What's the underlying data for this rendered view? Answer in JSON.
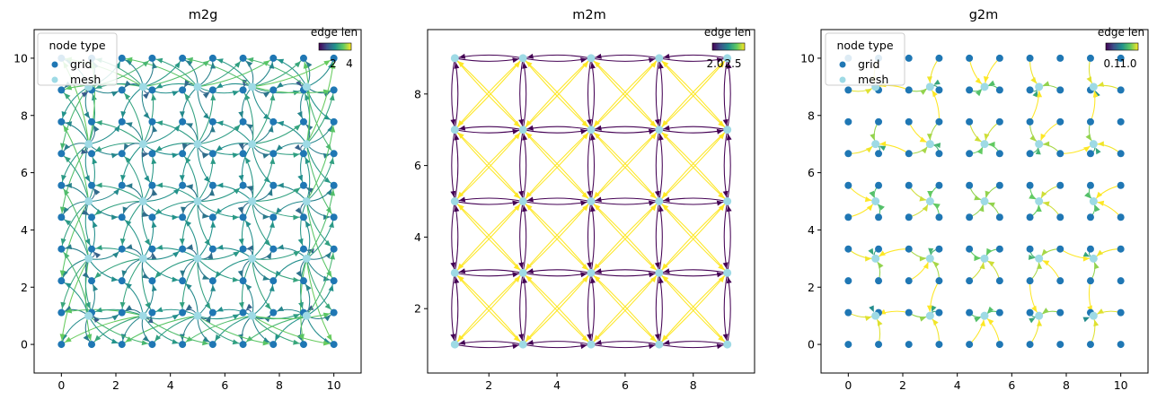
{
  "chart_data": [
    {
      "type": "network-graph",
      "title": "m2g",
      "xlim": [
        -1,
        11
      ],
      "ylim": [
        -1,
        11
      ],
      "xticks": [
        "0",
        "2",
        "4",
        "6",
        "8",
        "10"
      ],
      "yticks": [
        "0",
        "2",
        "4",
        "6",
        "8",
        "10"
      ],
      "legend": {
        "title": "node type",
        "placement": "top-left",
        "entries": [
          {
            "label": "grid",
            "color": "#1f77b4"
          },
          {
            "label": "mesh",
            "color": "#9edae5"
          }
        ]
      },
      "colorbar": {
        "label": "edge len",
        "ticks": [
          "2",
          "4"
        ],
        "colormap": "viridis"
      },
      "grid_nodes": {
        "x": [
          0,
          1.111,
          2.222,
          3.333,
          4.444,
          5.556,
          6.667,
          7.778,
          8.889,
          10
        ],
        "y": [
          0,
          1.111,
          2.222,
          3.333,
          4.444,
          5.556,
          6.667,
          7.778,
          8.889,
          10
        ]
      },
      "mesh_nodes": {
        "x": [
          1,
          3,
          5,
          7,
          9
        ],
        "y": [
          1,
          3,
          5,
          7,
          9
        ]
      },
      "edges": "mesh-to-grid",
      "grid": false
    },
    {
      "type": "network-graph",
      "title": "m2m",
      "xlim": [
        0.2,
        9.8
      ],
      "ylim": [
        0.2,
        9.8
      ],
      "xticks": [
        "2",
        "4",
        "6",
        "8"
      ],
      "yticks": [
        "2",
        "4",
        "6",
        "8"
      ],
      "colorbar": {
        "label": "edge len",
        "ticks": [
          "2.0",
          "2.5"
        ],
        "colormap": "viridis"
      },
      "mesh_nodes": {
        "x": [
          1,
          3,
          5,
          7,
          9
        ],
        "y": [
          1,
          3,
          5,
          7,
          9
        ]
      },
      "edges": "mesh-to-mesh",
      "grid": false
    },
    {
      "type": "network-graph",
      "title": "g2m",
      "xlim": [
        -1,
        11
      ],
      "ylim": [
        -1,
        11
      ],
      "xticks": [
        "0",
        "2",
        "4",
        "6",
        "8",
        "10"
      ],
      "yticks": [
        "0",
        "2",
        "4",
        "6",
        "8",
        "10"
      ],
      "legend": {
        "title": "node type",
        "placement": "top-left",
        "entries": [
          {
            "label": "grid",
            "color": "#1f77b4"
          },
          {
            "label": "mesh",
            "color": "#9edae5"
          }
        ]
      },
      "colorbar": {
        "label": "edge len",
        "ticks": [
          "0.1",
          "1.0"
        ],
        "colormap": "viridis"
      },
      "grid_nodes": {
        "x": [
          0,
          1.111,
          2.222,
          3.333,
          4.444,
          5.556,
          6.667,
          7.778,
          8.889,
          10
        ],
        "y": [
          0,
          1.111,
          2.222,
          3.333,
          4.444,
          5.556,
          6.667,
          7.778,
          8.889,
          10
        ]
      },
      "mesh_nodes": {
        "x": [
          1,
          3,
          5,
          7,
          9
        ],
        "y": [
          1,
          3,
          5,
          7,
          9
        ]
      },
      "edges": "grid-to-mesh",
      "grid": false
    }
  ]
}
